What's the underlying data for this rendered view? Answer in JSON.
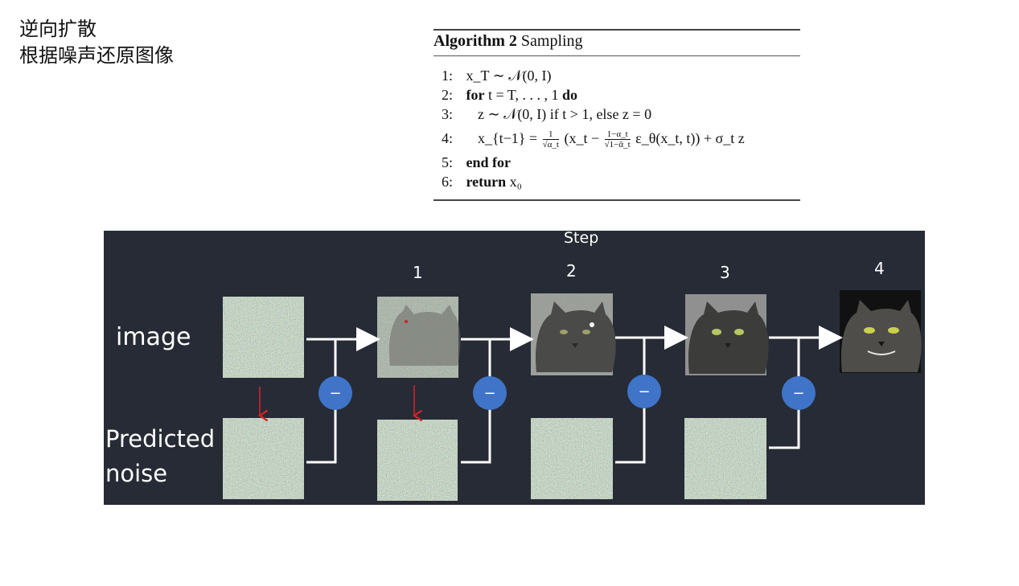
{
  "slide": {
    "title_line1": "逆向扩散",
    "title_line2": "根据噪声还原图像"
  },
  "algorithm": {
    "name_bold": "Algorithm 2",
    "name_rest": "Sampling",
    "line_numbers": [
      "1:",
      "2:",
      "3:",
      "4:",
      "5:",
      "6:"
    ],
    "l1": "x_T ∼ 𝒩(0, I)",
    "l2_kw": "for",
    "l2_mid": "t = T, . . . , 1",
    "l2_kw2": "do",
    "l3": "z ∼ 𝒩(0, I) if t > 1, else z = 0",
    "l4_lhs": "x_{t−1} =",
    "l4_f1_num": "1",
    "l4_f1_den": "√α_t",
    "l4_mid": "(x_t −",
    "l4_f2_num": "1−α_t",
    "l4_f2_den": "√1−ᾱ_t",
    "l4_rhs": "ε_θ(x_t, t)) + σ_t z",
    "l5": "end for",
    "l6_kw": "return",
    "l6": "x₀"
  },
  "diagram": {
    "step_header": "Step",
    "steps": [
      "1",
      "2",
      "3",
      "4"
    ],
    "row_label_image": "image",
    "row_label_noise_1": "Predicted",
    "row_label_noise_2": "noise",
    "operator_symbol": "−",
    "colors": {
      "background": "#262b35",
      "operator": "#3f74c8",
      "arrow": "#ffffff",
      "predict_arrow": "#d2232a"
    }
  }
}
